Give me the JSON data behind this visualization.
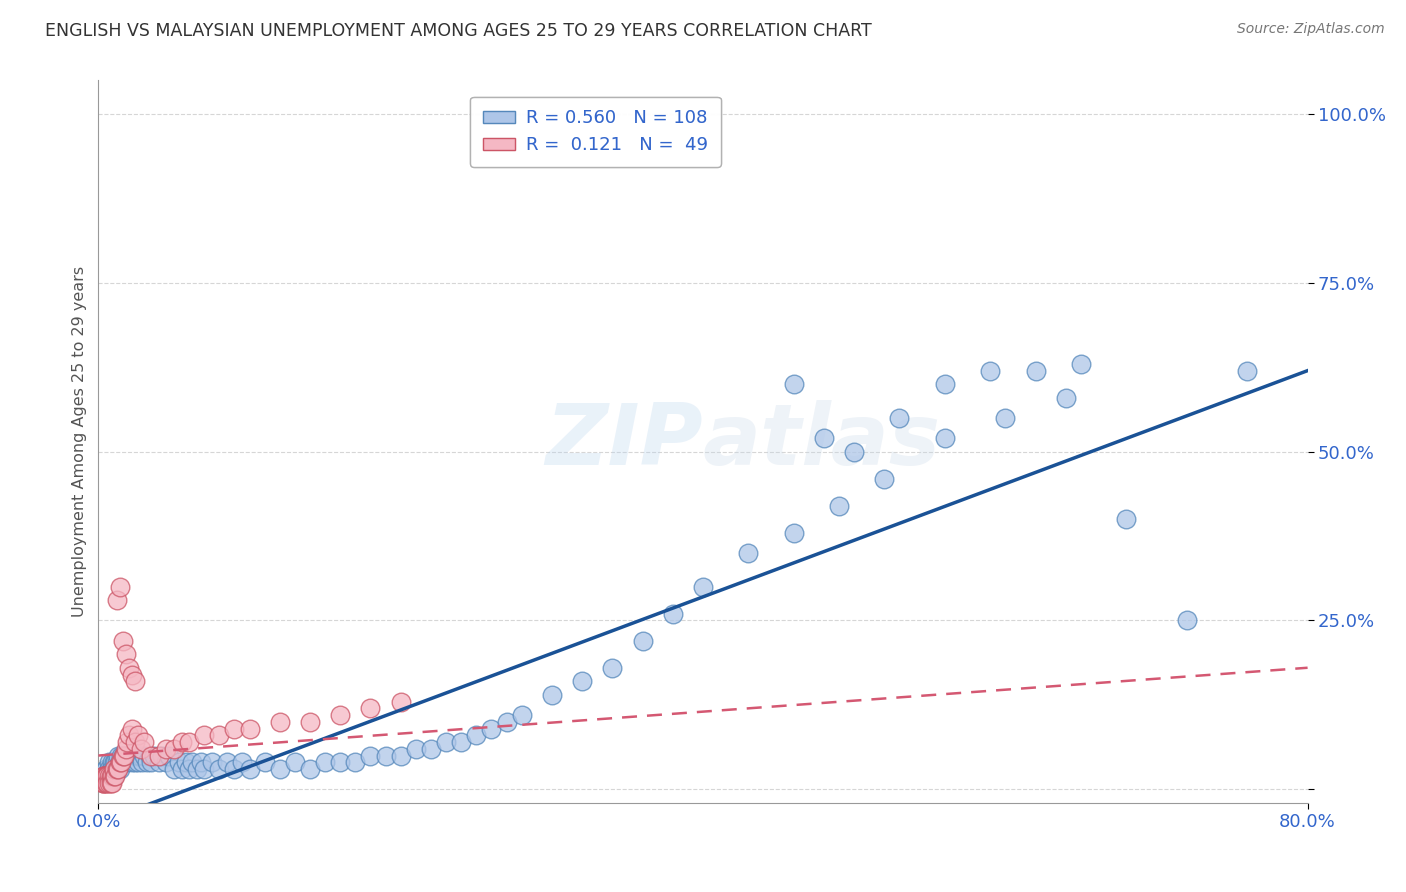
{
  "title": "ENGLISH VS MALAYSIAN UNEMPLOYMENT AMONG AGES 25 TO 29 YEARS CORRELATION CHART",
  "source": "Source: ZipAtlas.com",
  "ylabel_label": "Unemployment Among Ages 25 to 29 years",
  "english_color": "#aec6e8",
  "english_line_color": "#1a5296",
  "malaysian_color": "#f5b8c4",
  "malaysian_line_color": "#d45872",
  "english_edge_color": "#5588bb",
  "malaysian_edge_color": "#cc5566",
  "watermark": "ZIPatlas",
  "background_color": "#ffffff",
  "grid_color": "#cccccc",
  "title_color": "#333333",
  "axis_tick_color": "#3366cc",
  "english_R": 0.56,
  "english_N": 108,
  "malaysian_R": 0.121,
  "malaysian_N": 49,
  "xlim": [
    0.0,
    0.8
  ],
  "ylim": [
    -0.02,
    1.05
  ],
  "eng_x": [
    0.005,
    0.005,
    0.005,
    0.005,
    0.005,
    0.007,
    0.007,
    0.007,
    0.007,
    0.008,
    0.008,
    0.009,
    0.009,
    0.01,
    0.01,
    0.01,
    0.01,
    0.011,
    0.011,
    0.012,
    0.012,
    0.013,
    0.013,
    0.014,
    0.014,
    0.015,
    0.015,
    0.016,
    0.016,
    0.017,
    0.018,
    0.019,
    0.02,
    0.021,
    0.022,
    0.023,
    0.024,
    0.025,
    0.026,
    0.027,
    0.028,
    0.029,
    0.03,
    0.032,
    0.034,
    0.035,
    0.037,
    0.04,
    0.042,
    0.045,
    0.047,
    0.05,
    0.053,
    0.055,
    0.058,
    0.06,
    0.062,
    0.065,
    0.068,
    0.07,
    0.075,
    0.08,
    0.085,
    0.09,
    0.095,
    0.1,
    0.11,
    0.12,
    0.13,
    0.14,
    0.15,
    0.16,
    0.17,
    0.18,
    0.19,
    0.2,
    0.21,
    0.22,
    0.23,
    0.24,
    0.25,
    0.26,
    0.27,
    0.28,
    0.3,
    0.32,
    0.34,
    0.36,
    0.38,
    0.4,
    0.43,
    0.46,
    0.49,
    0.52,
    0.56,
    0.6,
    0.64,
    0.68,
    0.72,
    0.76,
    0.46,
    0.48,
    0.5,
    0.53,
    0.56,
    0.59,
    0.62,
    0.65
  ],
  "eng_y": [
    0.02,
    0.03,
    0.02,
    0.03,
    0.02,
    0.03,
    0.02,
    0.04,
    0.03,
    0.02,
    0.03,
    0.04,
    0.03,
    0.02,
    0.03,
    0.04,
    0.02,
    0.03,
    0.04,
    0.03,
    0.04,
    0.03,
    0.05,
    0.03,
    0.04,
    0.04,
    0.05,
    0.04,
    0.05,
    0.04,
    0.05,
    0.04,
    0.05,
    0.05,
    0.04,
    0.05,
    0.04,
    0.05,
    0.04,
    0.05,
    0.05,
    0.04,
    0.05,
    0.04,
    0.05,
    0.04,
    0.05,
    0.04,
    0.05,
    0.04,
    0.05,
    0.03,
    0.04,
    0.03,
    0.04,
    0.03,
    0.04,
    0.03,
    0.04,
    0.03,
    0.04,
    0.03,
    0.04,
    0.03,
    0.04,
    0.03,
    0.04,
    0.03,
    0.04,
    0.03,
    0.04,
    0.04,
    0.04,
    0.05,
    0.05,
    0.05,
    0.06,
    0.06,
    0.07,
    0.07,
    0.08,
    0.09,
    0.1,
    0.11,
    0.14,
    0.16,
    0.18,
    0.22,
    0.26,
    0.3,
    0.35,
    0.38,
    0.42,
    0.46,
    0.52,
    0.55,
    0.58,
    0.4,
    0.25,
    0.62,
    0.6,
    0.52,
    0.5,
    0.55,
    0.6,
    0.62,
    0.62,
    0.63
  ],
  "mal_x": [
    0.003,
    0.003,
    0.003,
    0.004,
    0.004,
    0.004,
    0.005,
    0.005,
    0.005,
    0.006,
    0.006,
    0.007,
    0.007,
    0.008,
    0.008,
    0.009,
    0.009,
    0.01,
    0.01,
    0.011,
    0.012,
    0.013,
    0.014,
    0.015,
    0.016,
    0.017,
    0.018,
    0.019,
    0.02,
    0.022,
    0.024,
    0.026,
    0.028,
    0.03,
    0.035,
    0.04,
    0.045,
    0.05,
    0.055,
    0.06,
    0.07,
    0.08,
    0.09,
    0.1,
    0.12,
    0.14,
    0.16,
    0.18,
    0.2
  ],
  "mal_y": [
    0.01,
    0.02,
    0.01,
    0.02,
    0.01,
    0.02,
    0.02,
    0.01,
    0.02,
    0.02,
    0.01,
    0.02,
    0.01,
    0.02,
    0.01,
    0.02,
    0.01,
    0.02,
    0.03,
    0.02,
    0.03,
    0.03,
    0.04,
    0.04,
    0.05,
    0.05,
    0.06,
    0.07,
    0.08,
    0.09,
    0.07,
    0.08,
    0.06,
    0.07,
    0.05,
    0.05,
    0.06,
    0.06,
    0.07,
    0.07,
    0.08,
    0.08,
    0.09,
    0.09,
    0.1,
    0.1,
    0.11,
    0.12,
    0.13
  ],
  "mal_outlier_x": [
    0.012,
    0.014,
    0.016,
    0.018,
    0.02,
    0.022,
    0.024
  ],
  "mal_outlier_y": [
    0.28,
    0.3,
    0.22,
    0.2,
    0.18,
    0.17,
    0.16
  ]
}
